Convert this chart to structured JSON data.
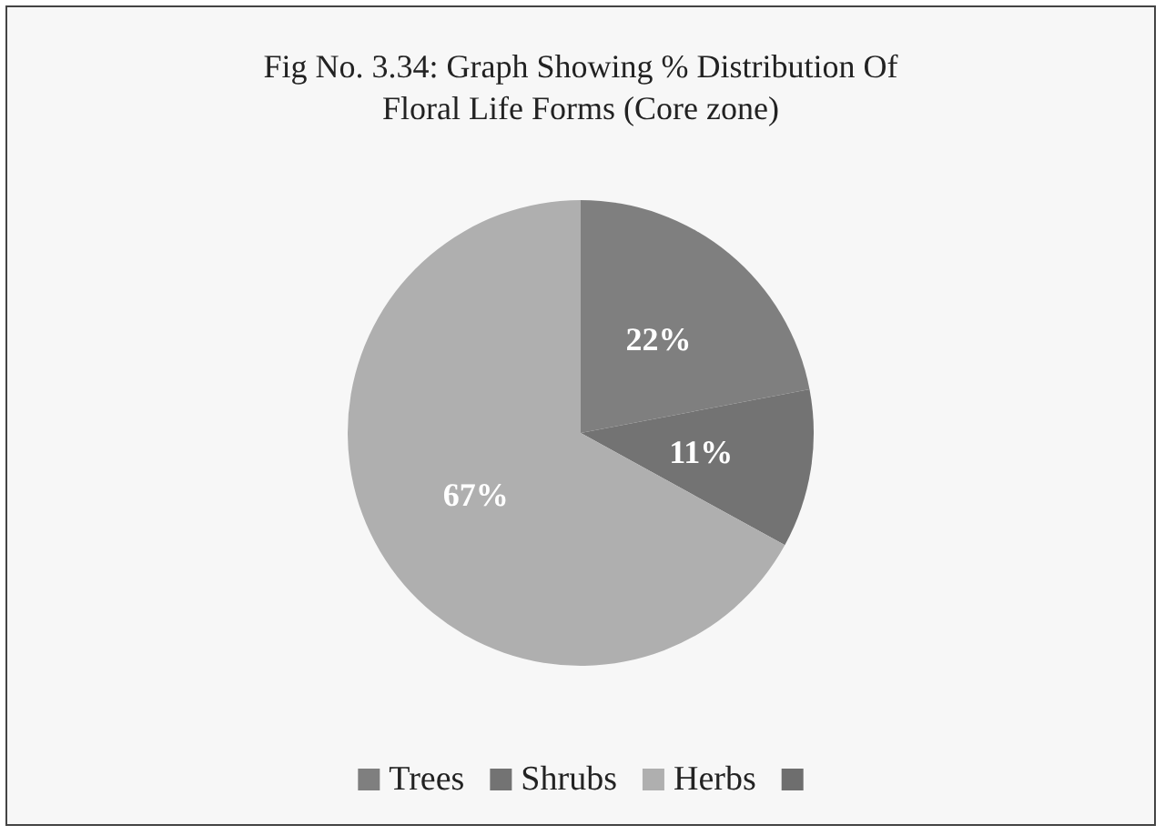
{
  "chart_data": {
    "type": "pie",
    "title": "Fig No. 3.34: Graph Showing % Distribution Of\nFloral Life Forms (Core zone)",
    "categories": [
      "Trees",
      "Shrubs",
      "Herbs",
      null
    ],
    "values": [
      22,
      11,
      67,
      0
    ],
    "colors": [
      "#7f7f7f",
      "#737373",
      "#afafaf",
      "#6e6e6e"
    ],
    "value_labels": [
      "22%",
      "11%",
      "67%",
      null
    ],
    "legend": "bottom"
  }
}
